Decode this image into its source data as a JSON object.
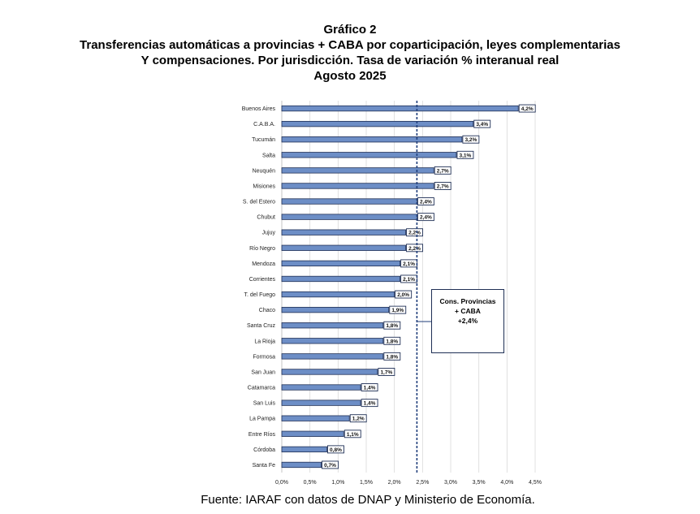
{
  "titles": {
    "line1": "Gráfico 2",
    "line2": "Transferencias automáticas a provincias + CABA por coparticipación, leyes complementarias",
    "line3": "Y compensaciones. Por jurisdicción. Tasa de variación % interanual real",
    "line4": "Agosto 2025"
  },
  "annotation": {
    "line1": "Cons. Provincias",
    "line2": "+ CABA",
    "line3": "+2,4%"
  },
  "source": "Fuente: IARAF con datos de DNAP y Ministerio de Economía.",
  "chart_data": {
    "type": "bar",
    "orientation": "horizontal",
    "categories": [
      "Buenos Aires",
      "C.A.B.A.",
      "Tucumán",
      "Salta",
      "Neuquén",
      "Misiones",
      "S. del Estero",
      "Chubut",
      "Jujuy",
      "Río Negro",
      "Mendoza",
      "Corrientes",
      "T. del Fuego",
      "Chaco",
      "Santa Cruz",
      "La Rioja",
      "Formosa",
      "San Juan",
      "Catamarca",
      "San Luis",
      "La Pampa",
      "Entre Ríos",
      "Córdoba",
      "Santa Fe"
    ],
    "values": [
      4.2,
      3.4,
      3.2,
      3.1,
      2.7,
      2.7,
      2.4,
      2.4,
      2.2,
      2.2,
      2.1,
      2.1,
      2.0,
      1.9,
      1.8,
      1.8,
      1.8,
      1.7,
      1.4,
      1.4,
      1.2,
      1.1,
      0.8,
      0.7
    ],
    "data_labels": [
      "4,2%",
      "3,4%",
      "3,2%",
      "3,1%",
      "2,7%",
      "2,7%",
      "2,4%",
      "2,4%",
      "2,2%",
      "2,2%",
      "2,1%",
      "2,1%",
      "2,0%",
      "1,9%",
      "1,8%",
      "1,8%",
      "1,8%",
      "1,7%",
      "1,4%",
      "1,4%",
      "1,2%",
      "1,1%",
      "0,8%",
      "0,7%"
    ],
    "x_ticks": [
      "0,0%",
      "0,5%",
      "1,0%",
      "1,5%",
      "2,0%",
      "2,5%",
      "3,0%",
      "3,5%",
      "4,0%",
      "4,5%"
    ],
    "xlim": [
      0,
      4.5
    ],
    "reference_line": 2.4,
    "grid": true,
    "bar_color": "#6d8ec6",
    "bar_edge_color": "#1f2f55",
    "reference_line_color": "#1f3d7a"
  }
}
